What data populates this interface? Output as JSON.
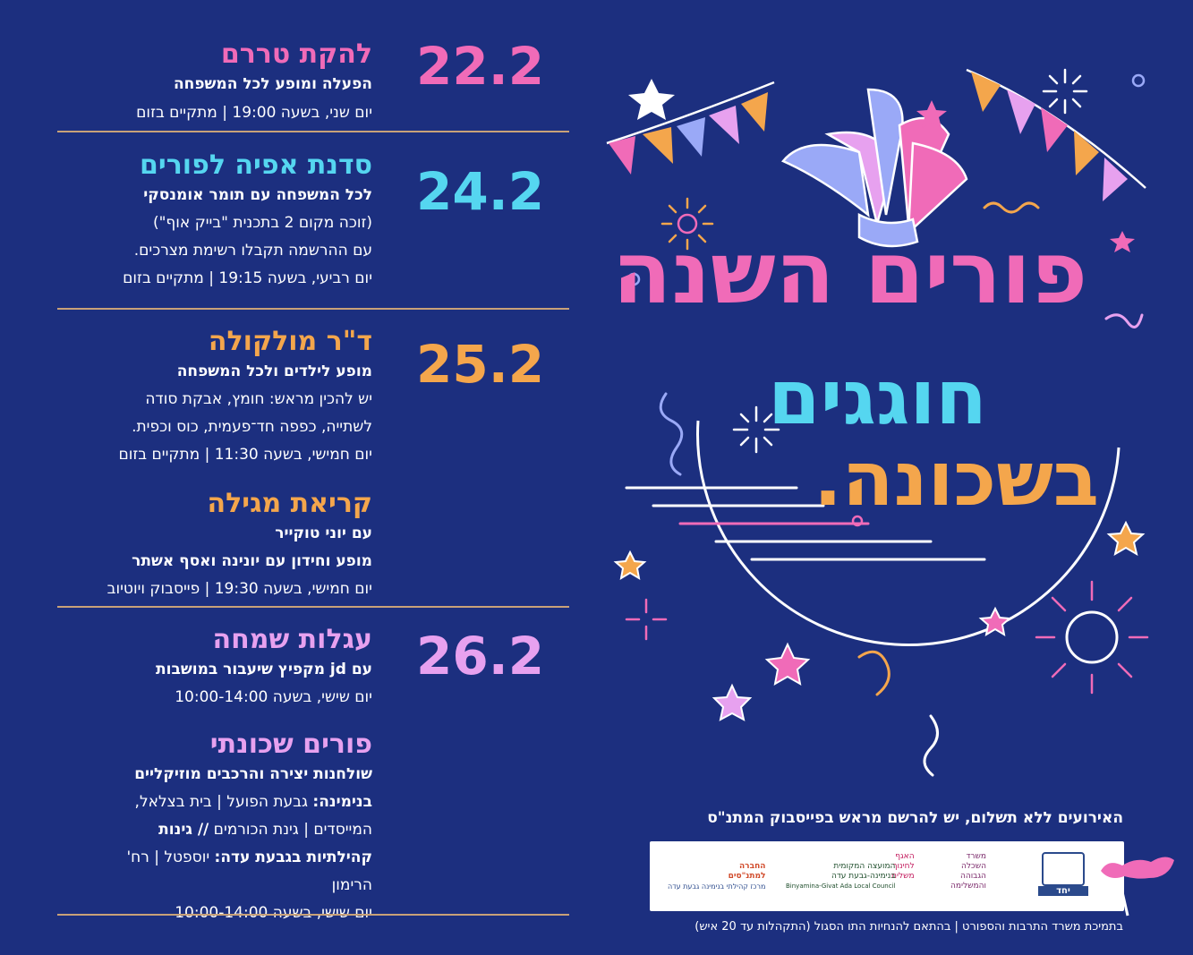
{
  "events": [
    {
      "date": "22.2",
      "title": "להקת טררם",
      "subtitle": "הפעלה ומופע לכל המשפחה",
      "lines": [
        "יום שני, בשעה 19:00 | מתקיים בזום"
      ]
    },
    {
      "date": "24.2",
      "title": "סדנת אפיה לפורים",
      "subtitle": "לכל המשפחה עם תומר אומנסקי",
      "lines": [
        "(זוכה מקום 2 בתכנית \"בייק אוף\")",
        "עם ההרשמה תקבלו רשימת מצרכים.",
        "יום רביעי, בשעה 19:15 | מתקיים בזום"
      ]
    },
    {
      "date": "25.2",
      "title": "ד\"ר מולקולה",
      "subtitle": "מופע לילדים ולכל המשפחה",
      "lines": [
        "יש להכין מראש: חומץ, אבקת סודה",
        "לשתייה, כפפה חד־פעמית, כוס וכפית.",
        "יום חמישי, בשעה 11:30 | מתקיים בזום"
      ],
      "title2": "קריאת מגילה",
      "subtitle2a": "עם יוני טוקייר",
      "subtitle2b": "מופע וחידון עם יונינה ואסף אשתר",
      "line2": "יום חמישי, בשעה 19:30 | פייסבוק ויוטיוב"
    },
    {
      "date": "26.2",
      "title": "עגלות שמחה",
      "subtitle": "עם jd מקפיץ שיעבור במושבות",
      "lines": [
        "יום שישי, בשעה 10:00-14:00"
      ],
      "title2": "פורים שכונתי",
      "subtitle2": "שולחנות יצירה והרכבים מוזיקליים",
      "bin_label": "בנימינה:",
      "bin_text": " גבעת הפועל | בית בצלאל,",
      "bin_line2a": "המייסדים | גינת הכורמים ",
      "bin_line2b": "// גינות",
      "giv_label": "קהילתיות בגבעת עדה:",
      "giv_text": " יוספטל | רח'",
      "giv_line2": "הרימון",
      "line_last": "יום שישי, בשעה 10:00-14:00"
    }
  ],
  "headline": {
    "line1": "פורים השנה",
    "line2": "חוגגים",
    "line3": "בשכונה."
  },
  "note": "האירועים ללא תשלום, יש להרשם מראש בפייסבוק המתנ\"ס",
  "logos": {
    "l1": "משרד\nהשכלה\nהגבוהה\nוהמשלימה",
    "l2": "האגף\nלחינוך\nמשלים",
    "l3": "המועצה המקומית\nבנימינה-גבעת עדה",
    "l3b": "Binyamina-Givat Ada Local Council",
    "l4": "החברה\nלמתנ\"סים",
    "l4b": "מרכז קהילתי בנימינה גבעת עדה",
    "l5": "יחד"
  },
  "footer": "בתמיכת משרד התרבות והספורט | בהתאם להנחיות התו הסגול (התקהלות עד 20 איש)",
  "colors": {
    "background": "#1c2f7f",
    "pink": "#f06bb8",
    "cyan": "#55d6f0",
    "orange": "#f4a64c",
    "lilac": "#e7a1ef",
    "divider": "#c8a178"
  }
}
